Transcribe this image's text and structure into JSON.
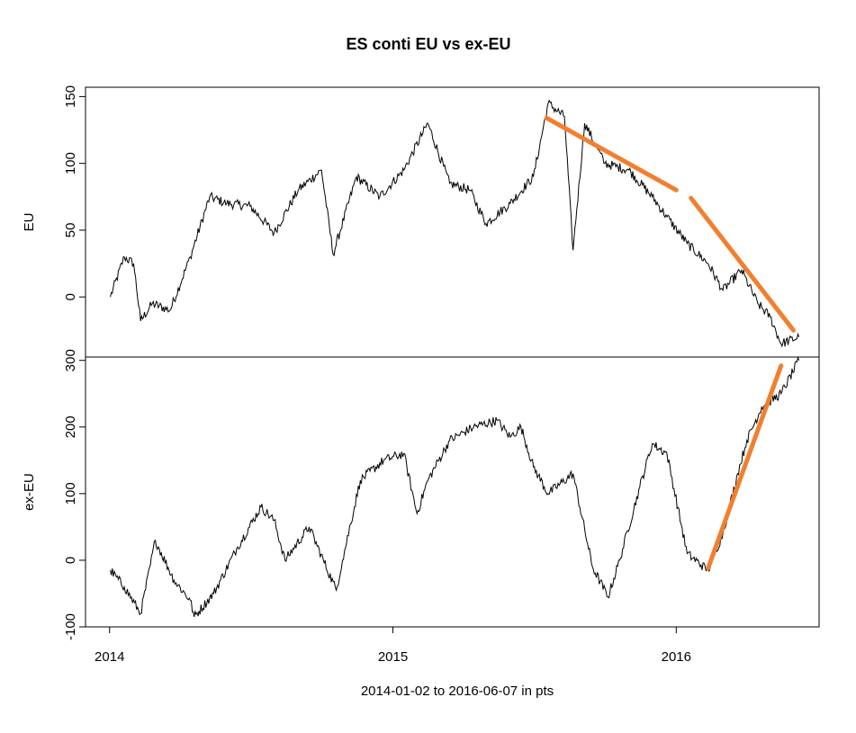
{
  "chart_data": {
    "type": "line",
    "title": "ES conti EU vs ex-EU",
    "xlabel": "2014-01-02 to 2016-06-07   in pts",
    "x_ticks": [
      "2014",
      "2015",
      "2016"
    ],
    "xlim": [
      "2013-12-01",
      "2016-07-03"
    ],
    "grid": false,
    "panels": [
      {
        "name": "EU",
        "ylabel": "EU",
        "ylim": [
          -45,
          157
        ],
        "y_ticks": [
          0,
          50,
          100,
          150
        ],
        "series": [
          {
            "name": "EU",
            "x": [
              "2014-01-02",
              "2014-01-20",
              "2014-02-01",
              "2014-02-10",
              "2014-02-25",
              "2014-03-20",
              "2014-04-15",
              "2014-05-10",
              "2014-06-01",
              "2014-07-01",
              "2014-08-01",
              "2014-09-01",
              "2014-10-01",
              "2014-10-16",
              "2014-11-15",
              "2014-12-15",
              "2015-01-15",
              "2015-02-15",
              "2015-03-15",
              "2015-04-10",
              "2015-05-01",
              "2015-06-01",
              "2015-07-01",
              "2015-07-20",
              "2015-08-10",
              "2015-08-21",
              "2015-09-05",
              "2015-10-01",
              "2015-11-01",
              "2015-12-01",
              "2015-12-20",
              "2016-01-15",
              "2016-02-11",
              "2016-03-01",
              "2016-03-25",
              "2016-04-15",
              "2016-05-01",
              "2016-05-15",
              "2016-06-07"
            ],
            "values": [
              0,
              30,
              25,
              -18,
              -5,
              -10,
              30,
              75,
              70,
              68,
              48,
              80,
              95,
              32,
              90,
              75,
              95,
              130,
              85,
              80,
              55,
              70,
              90,
              145,
              135,
              35,
              130,
              100,
              95,
              75,
              60,
              40,
              25,
              5,
              20,
              -5,
              -15,
              -35,
              -30
            ]
          }
        ],
        "annotations": [
          {
            "type": "trend",
            "color": "#f08030",
            "x": [
              "2015-07-18",
              "2016-01-01"
            ],
            "y": [
              134,
              80
            ]
          },
          {
            "type": "trend",
            "color": "#f08030",
            "x": [
              "2016-01-20",
              "2016-05-31"
            ],
            "y": [
              74,
              -25
            ]
          }
        ]
      },
      {
        "name": "ex-EU",
        "ylabel": "ex-EU",
        "ylim": [
          -100,
          305
        ],
        "y_ticks": [
          -100,
          0,
          100,
          200,
          300
        ],
        "series": [
          {
            "name": "ex-EU",
            "x": [
              "2014-01-02",
              "2014-01-20",
              "2014-02-10",
              "2014-03-01",
              "2014-03-25",
              "2014-04-15",
              "2014-04-20",
              "2014-05-15",
              "2014-06-15",
              "2014-07-15",
              "2014-08-01",
              "2014-08-15",
              "2014-09-15",
              "2014-10-20",
              "2014-10-28",
              "2014-11-20",
              "2014-12-20",
              "2015-01-15",
              "2015-02-01",
              "2015-02-15",
              "2015-03-15",
              "2015-04-15",
              "2015-05-15",
              "2015-06-01",
              "2015-06-15",
              "2015-07-01",
              "2015-07-20",
              "2015-08-21",
              "2015-09-15",
              "2015-10-05",
              "2015-10-20",
              "2015-11-15",
              "2015-12-01",
              "2015-12-20",
              "2016-01-15",
              "2016-02-11",
              "2016-03-01",
              "2016-03-20",
              "2016-04-01",
              "2016-04-20",
              "2016-05-15",
              "2016-06-07"
            ],
            "values": [
              -15,
              -40,
              -80,
              30,
              -30,
              -60,
              -85,
              -50,
              20,
              80,
              60,
              0,
              50,
              -45,
              0,
              120,
              150,
              160,
              70,
              120,
              180,
              200,
              210,
              185,
              200,
              140,
              100,
              130,
              -10,
              -55,
              0,
              110,
              175,
              160,
              10,
              -15,
              40,
              130,
              180,
              230,
              250,
              300
            ]
          }
        ],
        "annotations": [
          {
            "type": "trend",
            "color": "#f08030",
            "x": [
              "2016-02-11",
              "2016-05-15"
            ],
            "y": [
              -12,
              292
            ]
          }
        ]
      }
    ]
  }
}
